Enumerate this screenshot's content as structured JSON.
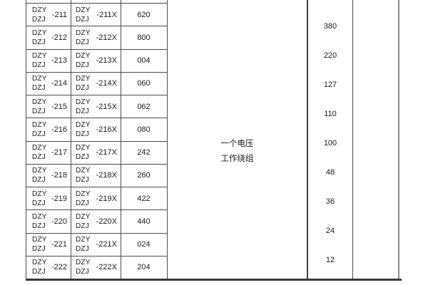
{
  "colors": {
    "border_thin": "#4d4d4d",
    "border_thick": "#3f3f3f",
    "outer_right_border": "#8c8c8c",
    "text": "#1b1b1b",
    "background": "#ffffff"
  },
  "model_table": {
    "rows": [
      {
        "prefix_top": "DZY",
        "prefix_bottom": "DZJ",
        "code": "-211",
        "code_x": "-211X",
        "value": "620"
      },
      {
        "prefix_top": "DZY",
        "prefix_bottom": "DZJ",
        "code": "-212",
        "code_x": "-212X",
        "value": "800"
      },
      {
        "prefix_top": "DZY",
        "prefix_bottom": "DZJ",
        "code": "-213",
        "code_x": "-213X",
        "value": "004"
      },
      {
        "prefix_top": "DZY",
        "prefix_bottom": "DZJ",
        "code": "-214",
        "code_x": "-214X",
        "value": "060"
      },
      {
        "prefix_top": "DZY",
        "prefix_bottom": "DZJ",
        "code": "-215",
        "code_x": "-215X",
        "value": "062"
      },
      {
        "prefix_top": "DZY",
        "prefix_bottom": "DZJ",
        "code": "-216",
        "code_x": "-216X",
        "value": "080"
      },
      {
        "prefix_top": "DZY",
        "prefix_bottom": "DZJ",
        "code": "-217",
        "code_x": "-217X",
        "value": "242"
      },
      {
        "prefix_top": "DZY",
        "prefix_bottom": "DZJ",
        "code": "-218",
        "code_x": "-218X",
        "value": "260"
      },
      {
        "prefix_top": "DZY",
        "prefix_bottom": "DZJ",
        "code": "-219",
        "code_x": "-219X",
        "value": "422"
      },
      {
        "prefix_top": "DZY",
        "prefix_bottom": "DZJ",
        "code": "-220",
        "code_x": "-220X",
        "value": "440"
      },
      {
        "prefix_top": "DZY",
        "prefix_bottom": "DZJ",
        "code": "-221",
        "code_x": "-221X",
        "value": "024"
      },
      {
        "prefix_top": "DZY",
        "prefix_bottom": "DZJ",
        "code": "-222",
        "code_x": "-222X",
        "value": "204"
      }
    ]
  },
  "winding_cell": {
    "line1": "一个电压",
    "line2": "工作绕组"
  },
  "voltage_column": {
    "values": [
      "380",
      "220",
      "127",
      "110",
      "100",
      "48",
      "36",
      "24",
      "12"
    ]
  }
}
